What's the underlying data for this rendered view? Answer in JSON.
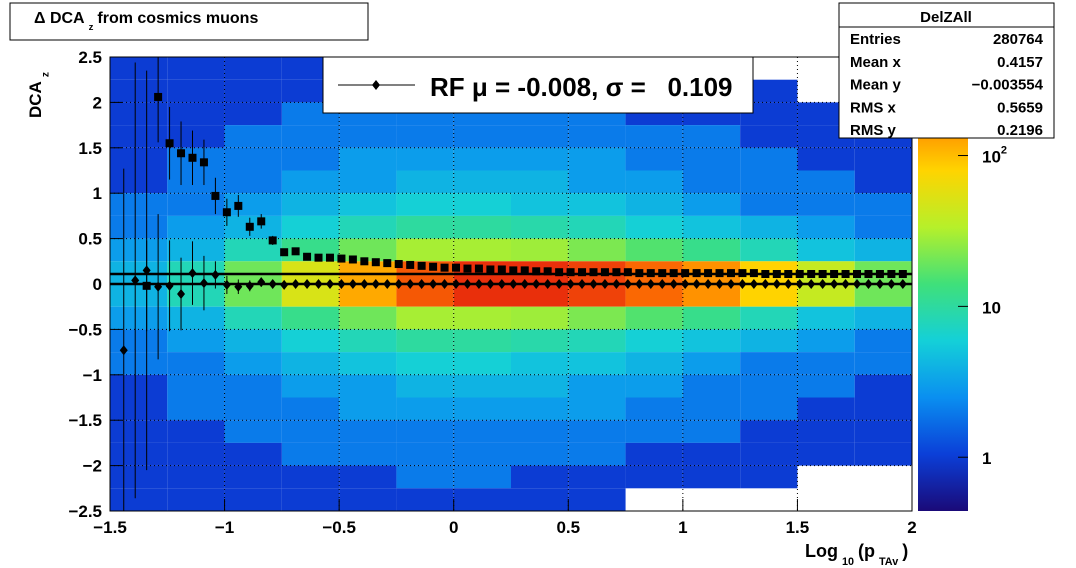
{
  "chart_data": {
    "type": "heatmap",
    "title": [
      "Δ DCA",
      "z",
      "from cosmics muons"
    ],
    "x_label": [
      "Log",
      "10",
      "(p",
      "TAv",
      ")"
    ],
    "y_label": [
      "DCA",
      "z"
    ],
    "xlim": [
      -1.5,
      2
    ],
    "ylim": [
      -2.5,
      2.5
    ],
    "xticks": [
      {
        "value": -1.5,
        "label": "−1.5"
      },
      {
        "value": -1,
        "label": "−1"
      },
      {
        "value": -0.5,
        "label": "−0.5"
      },
      0,
      0.5,
      1,
      1.5,
      2
    ],
    "yticks": [
      {
        "value": -2.5,
        "label": "−2.5"
      },
      {
        "value": -2,
        "label": "−2"
      },
      {
        "value": -1.5,
        "label": "−1.5"
      },
      {
        "value": -1,
        "label": "−1"
      },
      {
        "value": -0.5,
        "label": "−0.5"
      },
      0,
      0.5,
      1,
      1.5,
      2,
      2.5
    ],
    "grid": true,
    "zlim": [
      0.44,
      450
    ],
    "zscale": "log",
    "zticks": [
      1,
      10,
      {
        "value": 100,
        "label": "10",
        "exponent": "2"
      }
    ],
    "colorscale": [
      "#1a0a78",
      "#0b3fd8",
      "#0a8ff0",
      "#14d0d8",
      "#3fe07a",
      "#b6f02a",
      "#ffd400",
      "#ff7a00",
      "#e01010"
    ],
    "xbins": [
      -1.5,
      -1.25,
      -1,
      -0.75,
      -0.5,
      -0.25,
      0,
      0.25,
      0.5,
      0.75,
      1,
      1.25,
      1.5,
      1.75,
      2
    ],
    "ybins": [
      2.5,
      2.25,
      2,
      1.75,
      1.5,
      1.25,
      1,
      0.75,
      0.5,
      0.25,
      0,
      -0.25,
      -0.5,
      -0.75,
      -1,
      -1.25,
      -1.5,
      -1.75,
      -2,
      -2.25,
      -2.5
    ],
    "z": [
      [
        1,
        1,
        1,
        1,
        1,
        1,
        1,
        1,
        1,
        1,
        1,
        null,
        null,
        null
      ],
      [
        1,
        1,
        1,
        1,
        1,
        2,
        2,
        1,
        1,
        1,
        1,
        1,
        null,
        null
      ],
      [
        1,
        1,
        1,
        2,
        2,
        2,
        2,
        2,
        2,
        1,
        1,
        1,
        1,
        1
      ],
      [
        1,
        1,
        2,
        2,
        2,
        2,
        2,
        2,
        2,
        2,
        2,
        1,
        1,
        1
      ],
      [
        1,
        2,
        2,
        2,
        3,
        3,
        3,
        3,
        3,
        2,
        2,
        2,
        1,
        1
      ],
      [
        1,
        2,
        2,
        3,
        3,
        4,
        4,
        4,
        3,
        3,
        2,
        2,
        2,
        1
      ],
      [
        2,
        2,
        3,
        4,
        5,
        6,
        6,
        5,
        5,
        4,
        3,
        2,
        2,
        2
      ],
      [
        2,
        3,
        4,
        6,
        8,
        10,
        10,
        9,
        8,
        6,
        5,
        4,
        3,
        2
      ],
      [
        3,
        4,
        8,
        12,
        20,
        30,
        30,
        28,
        22,
        16,
        12,
        8,
        5,
        4
      ],
      [
        4,
        8,
        20,
        50,
        120,
        250,
        350,
        350,
        300,
        220,
        150,
        80,
        40,
        20
      ],
      [
        4,
        8,
        20,
        50,
        120,
        250,
        350,
        350,
        300,
        220,
        150,
        80,
        40,
        20
      ],
      [
        3,
        4,
        8,
        12,
        20,
        30,
        30,
        28,
        22,
        16,
        12,
        8,
        5,
        4
      ],
      [
        2,
        3,
        4,
        6,
        8,
        10,
        10,
        9,
        8,
        6,
        5,
        4,
        3,
        2
      ],
      [
        2,
        2,
        3,
        4,
        5,
        6,
        6,
        5,
        5,
        4,
        3,
        2,
        2,
        2
      ],
      [
        1,
        2,
        2,
        3,
        3,
        4,
        4,
        4,
        3,
        3,
        2,
        2,
        2,
        1
      ],
      [
        1,
        2,
        2,
        2,
        3,
        3,
        3,
        3,
        3,
        2,
        2,
        2,
        1,
        1
      ],
      [
        1,
        1,
        2,
        2,
        2,
        2,
        2,
        2,
        2,
        2,
        2,
        1,
        1,
        1
      ],
      [
        1,
        1,
        1,
        2,
        2,
        2,
        2,
        2,
        2,
        1,
        1,
        1,
        1,
        1
      ],
      [
        1,
        1,
        1,
        1,
        1,
        2,
        2,
        1,
        1,
        1,
        1,
        1,
        null,
        null
      ],
      [
        1,
        1,
        1,
        1,
        1,
        1,
        1,
        1,
        1,
        null,
        null,
        null,
        null,
        null
      ]
    ],
    "hlines": [
      0.11,
      0
    ],
    "x": [
      -1.44,
      -1.39,
      -1.34,
      -1.29,
      -1.24,
      -1.19,
      -1.14,
      -1.09,
      -1.04,
      -0.99,
      -0.94,
      -0.89,
      -0.84,
      -0.79,
      -0.74,
      -0.69,
      -0.64,
      -0.59,
      -0.54,
      -0.49,
      -0.44,
      -0.39,
      -0.34,
      -0.29,
      -0.24,
      -0.19,
      -0.14,
      -0.09,
      -0.04,
      0.01,
      0.06,
      0.11,
      0.16,
      0.21,
      0.26,
      0.31,
      0.36,
      0.41,
      0.46,
      0.51,
      0.56,
      0.61,
      0.66,
      0.71,
      0.76,
      0.81,
      0.86,
      0.91,
      0.96,
      1.01,
      1.06,
      1.11,
      1.16,
      1.21,
      1.26,
      1.31,
      1.36,
      1.41,
      1.46,
      1.51,
      1.56,
      1.61,
      1.66,
      1.71,
      1.76,
      1.81,
      1.86,
      1.91,
      1.96
    ],
    "series": [
      {
        "marker": "square",
        "color": "#000000",
        "values": [
          null,
          null,
          -0.02,
          2.06,
          1.55,
          1.44,
          1.39,
          1.34,
          0.97,
          0.79,
          0.86,
          0.63,
          0.69,
          0.48,
          0.35,
          0.36,
          0.3,
          0.29,
          0.29,
          0.28,
          0.27,
          0.25,
          0.24,
          0.23,
          0.22,
          0.21,
          0.2,
          0.19,
          0.18,
          0.18,
          0.17,
          0.17,
          0.16,
          0.16,
          0.15,
          0.15,
          0.14,
          0.14,
          0.13,
          0.13,
          0.13,
          0.13,
          0.13,
          0.13,
          0.13,
          0.12,
          0.12,
          0.12,
          0.12,
          0.12,
          0.12,
          0.12,
          0.12,
          0.12,
          0.12,
          0.12,
          0.11,
          0.11,
          0.11,
          0.11,
          0.11,
          0.11,
          0.11,
          0.11,
          0.11,
          0.11,
          0.11,
          0.11,
          0.11
        ],
        "errors": [
          null,
          null,
          0.5,
          0.5,
          0.4,
          0.35,
          0.3,
          0.25,
          0.2,
          0.15,
          0.12,
          0.1,
          0.08,
          0.05,
          null,
          null,
          null,
          null,
          null,
          null,
          null,
          null,
          null,
          null,
          null,
          null,
          null,
          null,
          null,
          null,
          null,
          null,
          null,
          null,
          null,
          null,
          null,
          null,
          null,
          null,
          null,
          null,
          null,
          null,
          null,
          null,
          null,
          null,
          null,
          null,
          null,
          null,
          null,
          null,
          null,
          null,
          null,
          null,
          null,
          null,
          null,
          null,
          null,
          null,
          null,
          null,
          null,
          null,
          null
        ]
      },
      {
        "name": "RF μ = -0.008, σ =   0.109",
        "marker": "diamond",
        "color": "#000000",
        "values": [
          -0.73,
          0.04,
          0.15,
          -0.03,
          -0.02,
          -0.11,
          0.12,
          0.01,
          0.1,
          -0.01,
          -0.03,
          -0.02,
          0.02,
          0,
          -0.01,
          0,
          0,
          0,
          0,
          0,
          0,
          0,
          0,
          0,
          0,
          0,
          0,
          0,
          0,
          0,
          0,
          0,
          0,
          0,
          0,
          0,
          0,
          0,
          0,
          0,
          0,
          0,
          0,
          0,
          0,
          0,
          0,
          0,
          0,
          0,
          0,
          0,
          0,
          0,
          0,
          0,
          0,
          0,
          0,
          0,
          0,
          0,
          0,
          0,
          0,
          0,
          0,
          0,
          0
        ],
        "errors": [
          2.0,
          2.4,
          2.2,
          0.8,
          0.5,
          0.4,
          0.35,
          0.3,
          0.15,
          0.1,
          0.08,
          0.06,
          0.05,
          null,
          null,
          null,
          null,
          null,
          null,
          null,
          null,
          null,
          null,
          null,
          null,
          null,
          null,
          null,
          null,
          null,
          null,
          null,
          null,
          null,
          null,
          null,
          null,
          null,
          null,
          null,
          null,
          null,
          null,
          null,
          null,
          null,
          null,
          null,
          null,
          null,
          null,
          null,
          null,
          null,
          null,
          null,
          null,
          null,
          null,
          null,
          null,
          null,
          null,
          null,
          null,
          null,
          null,
          null,
          null
        ]
      }
    ],
    "stats": {
      "title": "DelZAll",
      "rows": [
        [
          "Entries",
          "280764"
        ],
        [
          "Mean x",
          "0.4157"
        ],
        [
          "Mean y",
          "−0.003554"
        ],
        [
          "RMS x",
          "0.5659"
        ],
        [
          "RMS y",
          "0.2196"
        ]
      ]
    }
  }
}
